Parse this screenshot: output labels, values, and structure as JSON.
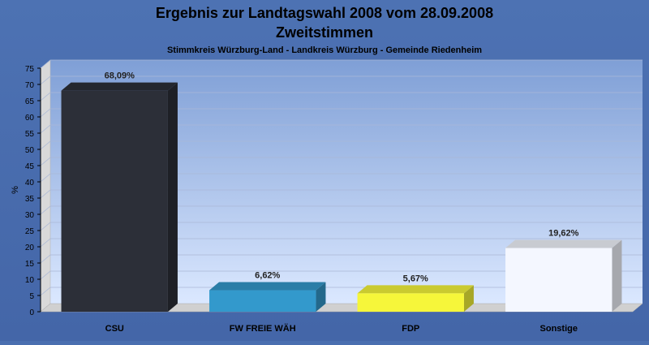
{
  "chart_data": {
    "type": "bar",
    "title": "Ergebnis zur Landtagswahl 2008 vom 28.09.2008",
    "subtitle": "Zweitstimmen",
    "caption": "Stimmkreis Würzburg-Land - Landkreis Würzburg - Gemeinde Riedenheim",
    "ylabel": "%",
    "xlabel": "",
    "ylim": [
      0,
      75
    ],
    "ytick_step": 5,
    "grid": true,
    "categories": [
      "CSU",
      "FW FREIE WÄH",
      "FDP",
      "Sonstige"
    ],
    "values": [
      68.09,
      6.62,
      5.67,
      19.62
    ],
    "value_labels": [
      "68,09%",
      "6,62%",
      "5,67%",
      "19,62%"
    ],
    "colors": [
      "#2c2f38",
      "#3399cc",
      "#f6f63a",
      "#f4f7ff"
    ]
  }
}
